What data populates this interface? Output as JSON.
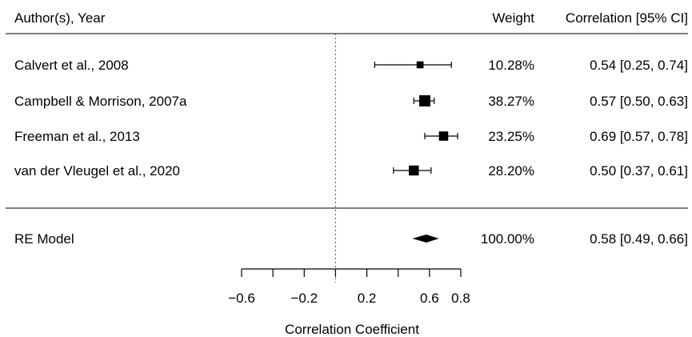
{
  "chart_data": {
    "type": "forest",
    "header": {
      "study": "Author(s), Year",
      "weight": "Weight",
      "estimate": "Correlation [95% CI]"
    },
    "studies": [
      {
        "label": "Calvert et al., 2008",
        "estimate": 0.54,
        "ci_low": 0.25,
        "ci_high": 0.74,
        "weight_pct": 10.28,
        "weight_text": "10.28%",
        "ci_text": "0.54 [0.25, 0.74]"
      },
      {
        "label": "Campbell & Morrison, 2007a",
        "estimate": 0.57,
        "ci_low": 0.5,
        "ci_high": 0.63,
        "weight_pct": 38.27,
        "weight_text": "38.27%",
        "ci_text": "0.57 [0.50, 0.63]"
      },
      {
        "label": "Freeman et al., 2013",
        "estimate": 0.69,
        "ci_low": 0.57,
        "ci_high": 0.78,
        "weight_pct": 23.25,
        "weight_text": "23.25%",
        "ci_text": "0.69 [0.57, 0.78]"
      },
      {
        "label": "van der Vleugel et al., 2020",
        "estimate": 0.5,
        "ci_low": 0.37,
        "ci_high": 0.61,
        "weight_pct": 28.2,
        "weight_text": "28.20%",
        "ci_text": "0.50 [0.37, 0.61]"
      }
    ],
    "summary": {
      "label": "RE Model",
      "estimate": 0.58,
      "ci_low": 0.49,
      "ci_high": 0.66,
      "weight_pct": 100.0,
      "weight_text": "100.00%",
      "ci_text": "0.58 [0.49, 0.66]"
    },
    "reference_line": 0,
    "xlim": [
      -0.6,
      0.8
    ],
    "x_ticks": [
      -0.6,
      -0.4,
      -0.2,
      0,
      0.2,
      0.4,
      0.6,
      0.8
    ],
    "x_tick_labels": [
      {
        "value": -0.6,
        "text": "−0.6"
      },
      {
        "value": -0.2,
        "text": "−0.2"
      },
      {
        "value": 0.2,
        "text": "0.2"
      },
      {
        "value": 0.6,
        "text": "0.6"
      },
      {
        "value": 0.8,
        "text": "0.8"
      }
    ],
    "xlabel": "Correlation Coefficient"
  }
}
